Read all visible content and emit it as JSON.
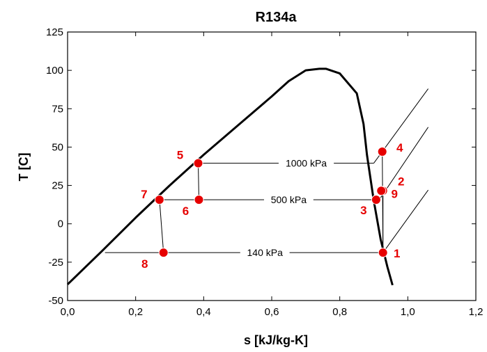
{
  "chart_data": {
    "type": "line",
    "title": "R134a",
    "xlabel": "s [kJ/kg-K]",
    "ylabel": "T [C]",
    "xlim": [
      0,
      1.2
    ],
    "ylim": [
      -50,
      125
    ],
    "x_ticks": [
      "0,0",
      "0,2",
      "0,4",
      "0,6",
      "0,8",
      "1,0",
      "1,2"
    ],
    "y_ticks": [
      "-50",
      "-25",
      "0",
      "25",
      "50",
      "75",
      "100",
      "125"
    ],
    "grid": false,
    "colors": {
      "dome": "#000000",
      "lines": "#000000",
      "points": "#e60000"
    },
    "saturation_dome": {
      "s": [
        0.0,
        0.1,
        0.2,
        0.3,
        0.4,
        0.5,
        0.6,
        0.65,
        0.7,
        0.74,
        0.76,
        0.8,
        0.85,
        0.87,
        0.88,
        0.9,
        0.92,
        0.94,
        0.955
      ],
      "T": [
        -39.5,
        -18,
        4,
        25,
        45,
        64,
        83,
        93,
        100,
        101,
        101,
        98,
        85,
        65,
        45,
        15,
        -10,
        -28,
        -40
      ]
    },
    "isobars": [
      {
        "label": "1000 kPa",
        "T": 39.5,
        "s_start": 0.38,
        "s_end": 0.9
      },
      {
        "label": "500 kPa",
        "T": 15.7,
        "s_start": 0.27,
        "s_end": 0.907
      },
      {
        "label": "140 kPa",
        "T": -18.8,
        "s_start": 0.11,
        "s_end": 0.927
      }
    ],
    "superheat_lines": [
      {
        "s": [
          0.9,
          1.06
        ],
        "T": [
          39.5,
          88
        ]
      },
      {
        "s": [
          0.907,
          0.92,
          1.06
        ],
        "T": [
          15.7,
          17,
          63
        ]
      },
      {
        "s": [
          0.927,
          1.06
        ],
        "T": [
          -18.8,
          22
        ]
      }
    ],
    "process_segments": [
      {
        "s": [
          0.927,
          0.925
        ],
        "T": [
          -18.8,
          47
        ]
      },
      {
        "s": [
          0.927,
          0.927
        ],
        "T": [
          -18.8,
          21.5
        ]
      },
      {
        "s": [
          0.384,
          0.386
        ],
        "T": [
          39.5,
          15.7
        ]
      },
      {
        "s": [
          0.27,
          0.282
        ],
        "T": [
          15.7,
          -18.8
        ]
      }
    ],
    "points": [
      {
        "label": "1",
        "s": 0.927,
        "T": -18.8
      },
      {
        "label": "2",
        "s": 0.927,
        "T": 21.5
      },
      {
        "label": "3",
        "s": 0.907,
        "T": 15.7
      },
      {
        "label": "4",
        "s": 0.925,
        "T": 47
      },
      {
        "label": "5",
        "s": 0.384,
        "T": 39.5
      },
      {
        "label": "6",
        "s": 0.386,
        "T": 15.7
      },
      {
        "label": "7",
        "s": 0.27,
        "T": 15.7
      },
      {
        "label": "8",
        "s": 0.282,
        "T": -18.8
      },
      {
        "label": "9",
        "s": 0.922,
        "T": 21.5
      }
    ]
  }
}
